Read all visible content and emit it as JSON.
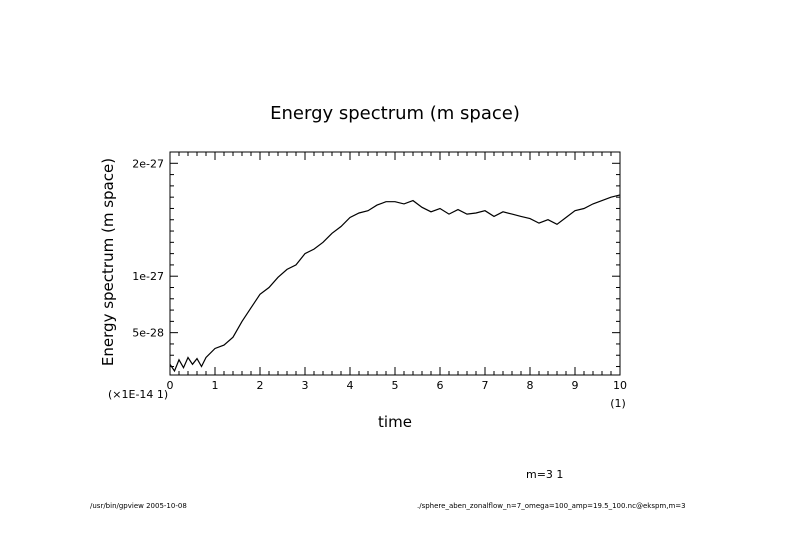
{
  "chart_data": {
    "type": "line",
    "title": "Energy spectrum (m space)",
    "xlabel": "time",
    "ylabel": "Energy spectrum (m space)",
    "x_scale_label": "(1)",
    "y_scale_label": "(×1E-14 1)",
    "xlim": [
      0,
      10
    ],
    "ylim": [
      1.25e-28,
      2.1e-27
    ],
    "x_ticks": [
      0,
      1,
      2,
      3,
      4,
      5,
      6,
      7,
      8,
      9,
      10
    ],
    "x_tick_labels": [
      "0",
      "1",
      "2",
      "3",
      "4",
      "5",
      "6",
      "7",
      "8",
      "9",
      "10"
    ],
    "y_ticks": [
      5e-28,
      1e-27,
      2e-27
    ],
    "y_tick_labels": [
      "5e-28",
      "1e-27",
      "2e-27"
    ],
    "grid": false,
    "series": [
      {
        "values_x": [
          0,
          0.1,
          0.2,
          0.3,
          0.4,
          0.5,
          0.6,
          0.7,
          0.8,
          1.0,
          1.2,
          1.4,
          1.6,
          1.8,
          2.0,
          2.2,
          2.4,
          2.6,
          2.8,
          3.0,
          3.2,
          3.4,
          3.6,
          3.8,
          4.0,
          4.2,
          4.4,
          4.6,
          4.8,
          5.0,
          5.2,
          5.4,
          5.6,
          5.8,
          6.0,
          6.2,
          6.4,
          6.6,
          6.8,
          7.0,
          7.2,
          7.4,
          7.6,
          7.8,
          8.0,
          8.2,
          8.4,
          8.6,
          8.8,
          9.0,
          9.2,
          9.4,
          9.6,
          9.8,
          10.0
        ],
        "values_y": [
          2.2e-28,
          1.6e-28,
          2.6e-28,
          1.9e-28,
          2.8e-28,
          2.2e-28,
          2.7e-28,
          2e-28,
          2.8e-28,
          3.6e-28,
          3.9e-28,
          4.6e-28,
          6e-28,
          7.2e-28,
          8.4e-28,
          9e-28,
          9.9e-28,
          1.06e-27,
          1.1e-27,
          1.2e-27,
          1.24e-27,
          1.3e-27,
          1.38e-27,
          1.44e-27,
          1.52e-27,
          1.56e-27,
          1.58e-27,
          1.63e-27,
          1.66e-27,
          1.66e-27,
          1.64e-27,
          1.67e-27,
          1.61e-27,
          1.57e-27,
          1.6e-27,
          1.55e-27,
          1.59e-27,
          1.55e-27,
          1.56e-27,
          1.58e-27,
          1.53e-27,
          1.57e-27,
          1.55e-27,
          1.53e-27,
          1.51e-27,
          1.47e-27,
          1.5e-27,
          1.46e-27,
          1.52e-27,
          1.58e-27,
          1.6e-27,
          1.64e-27,
          1.67e-27,
          1.7e-27,
          1.72e-27
        ]
      }
    ],
    "annotation": "m=3 1"
  },
  "footer": {
    "left": "/usr/bin/gpview  2005-10-08",
    "right": "./sphere_aben_zonalflow_n=7_omega=100_amp=19.5_100.nc@ekspm,m=3"
  }
}
